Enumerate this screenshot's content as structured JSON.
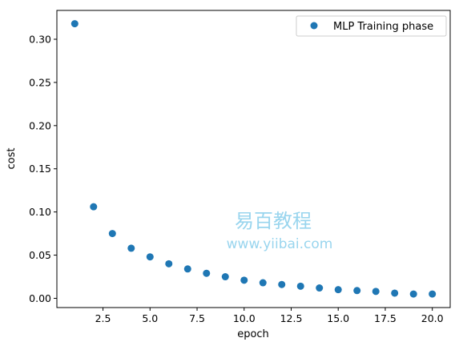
{
  "chart_data": {
    "type": "scatter",
    "title": "",
    "xlabel": "epoch",
    "ylabel": "cost",
    "xlim": [
      0.05,
      20.95
    ],
    "ylim": [
      -0.0107,
      0.3334
    ],
    "xticks": [
      "2.5",
      "5.0",
      "7.5",
      "10.0",
      "12.5",
      "15.0",
      "17.5",
      "20.0"
    ],
    "xtick_values": [
      2.5,
      5.0,
      7.5,
      10.0,
      12.5,
      15.0,
      17.5,
      20.0
    ],
    "yticks": [
      "0.00",
      "0.05",
      "0.10",
      "0.15",
      "0.20",
      "0.25",
      "0.30"
    ],
    "ytick_values": [
      0.0,
      0.05,
      0.1,
      0.15,
      0.2,
      0.25,
      0.3
    ],
    "grid": false,
    "legend_position": "top-right",
    "series": [
      {
        "name": "MLP Training phase",
        "color": "#1f77b4",
        "x": [
          1,
          2,
          3,
          4,
          5,
          6,
          7,
          8,
          9,
          10,
          11,
          12,
          13,
          14,
          15,
          16,
          17,
          18,
          19,
          20
        ],
        "y": [
          0.318,
          0.106,
          0.075,
          0.058,
          0.048,
          0.04,
          0.034,
          0.029,
          0.025,
          0.021,
          0.018,
          0.016,
          0.014,
          0.012,
          0.01,
          0.009,
          0.008,
          0.006,
          0.005,
          0.005
        ]
      }
    ]
  },
  "watermark": {
    "text_cn": "易百教程",
    "text_url": "www.yiibai.com",
    "color": "#87ceeb"
  }
}
